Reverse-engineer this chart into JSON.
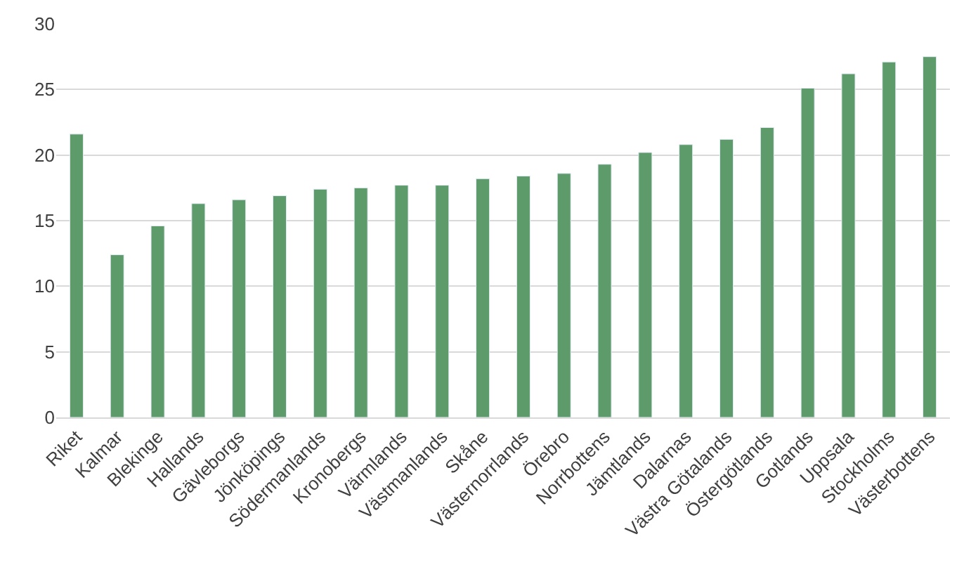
{
  "chart_data": {
    "type": "bar",
    "categories": [
      "Riket",
      "Kalmar",
      "Blekinge",
      "Hallands",
      "Gävleborgs",
      "Jönköpings",
      "Södermanlands",
      "Kronobergs",
      "Värmlands",
      "Västmanlands",
      "Skåne",
      "Västernorrlands",
      "Örebro",
      "Norrbottens",
      "Jämtlands",
      "Dalarnas",
      "Västra Götalands",
      "Östergötlands",
      "Gotlands",
      "Uppsala",
      "Stockholms",
      "Västerbottens"
    ],
    "values": [
      21.6,
      12.4,
      14.6,
      16.3,
      16.6,
      16.9,
      17.4,
      17.5,
      17.7,
      17.7,
      18.2,
      18.4,
      18.6,
      19.3,
      20.2,
      20.8,
      21.2,
      22.1,
      25.1,
      26.2,
      27.1,
      27.5
    ],
    "color": "#5e9b6a",
    "ylim": [
      0,
      30
    ],
    "yticks": [
      0,
      5,
      10,
      15,
      20,
      25,
      30
    ],
    "grid": "y",
    "legend": false
  }
}
